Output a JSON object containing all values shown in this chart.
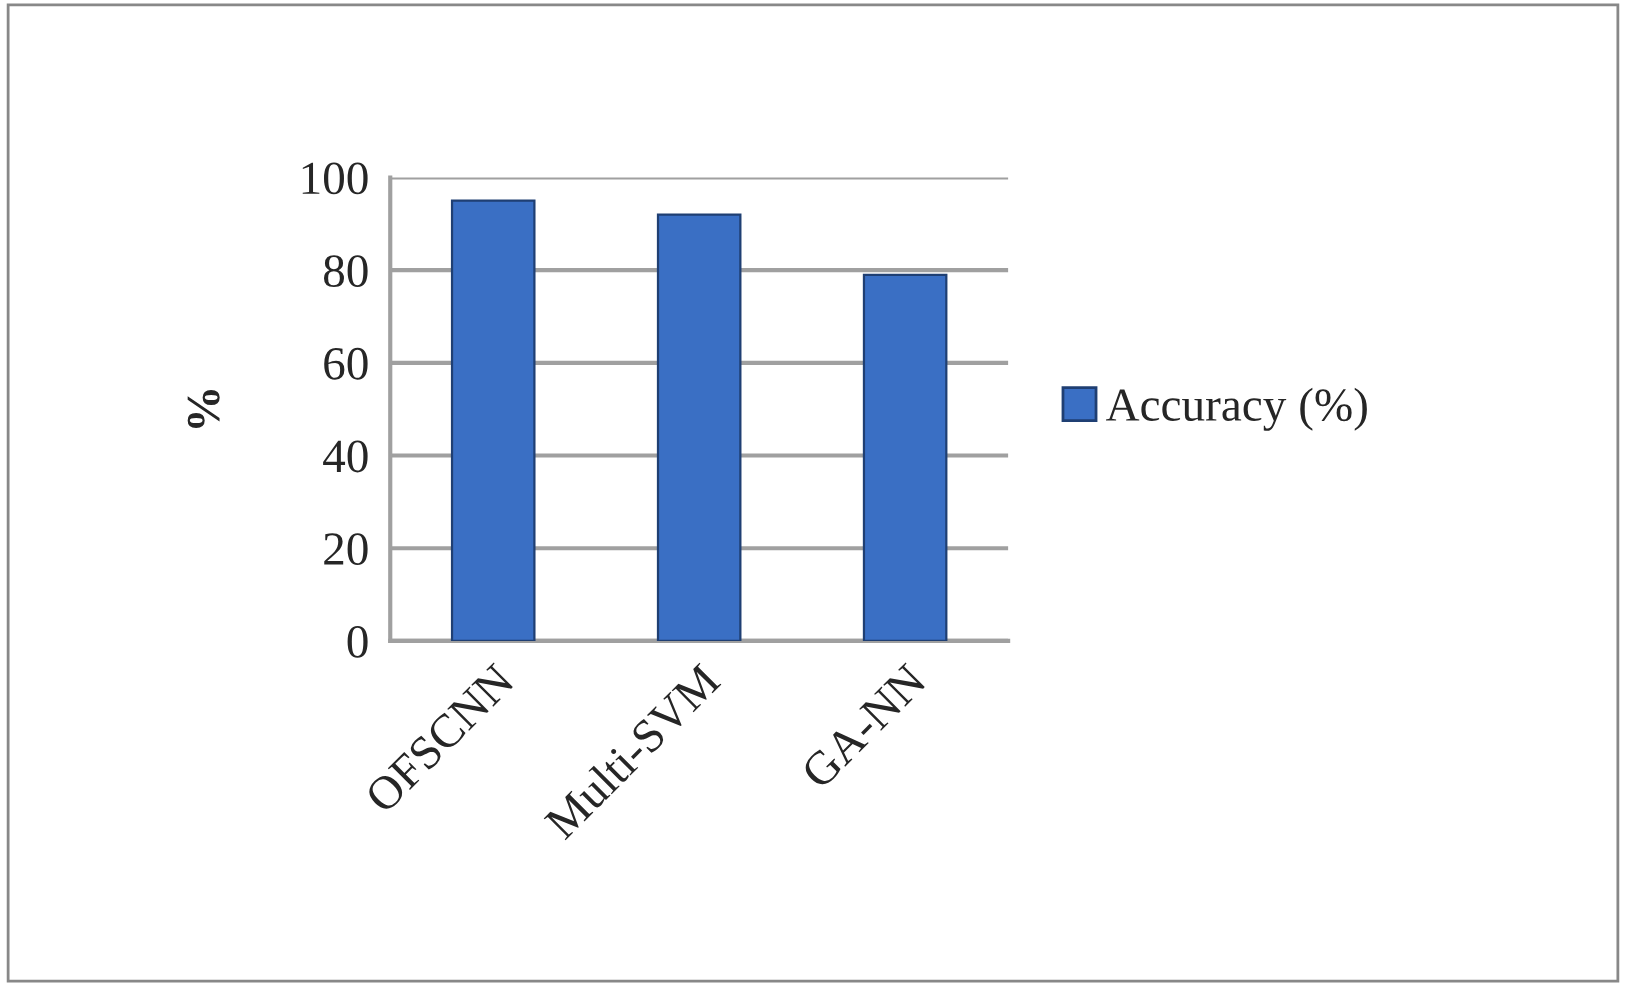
{
  "chart_data": {
    "type": "bar",
    "ylabel": "%",
    "categories": [
      "OFSCNN",
      "Multi-SVM",
      "GA-NN"
    ],
    "series": [
      {
        "name": "Accuracy (%)",
        "color": "#3a6fc4",
        "values": [
          95,
          92,
          79
        ]
      }
    ],
    "ylim": [
      0,
      100
    ],
    "yticks": [
      0,
      20,
      40,
      60,
      80,
      100
    ],
    "grid": "y",
    "legend": "right"
  }
}
